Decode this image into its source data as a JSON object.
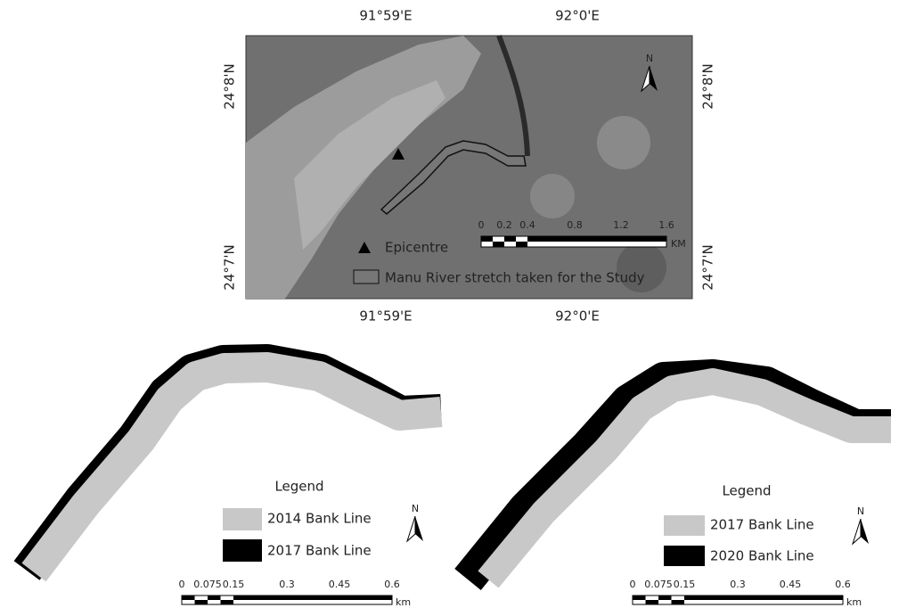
{
  "top_map": {
    "lon_labels_top": [
      "91°59'E",
      "92°0'E"
    ],
    "lon_labels_bottom": [
      "91°59'E",
      "92°0'E"
    ],
    "lat_labels_left": [
      "24°8'N",
      "24°7'N"
    ],
    "lat_labels_right": [
      "24°8'N",
      "24°7'N"
    ],
    "north": "N",
    "scale": {
      "labels": [
        "0",
        "0.2",
        "0.4",
        "0.8",
        "1.2",
        "1.6"
      ],
      "unit": "KM"
    },
    "legend": [
      "Epicentre",
      "Manu River stretch taken for the Study"
    ]
  },
  "panels": [
    {
      "legend_title": "Legend",
      "legend": [
        "2014 Bank Line",
        "2017 Bank Line"
      ],
      "north": "N",
      "scale": {
        "labels": [
          "0",
          "0.075",
          "0.15",
          "0.3",
          "0.45",
          "0.6"
        ],
        "unit": "km"
      }
    },
    {
      "legend_title": "Legend",
      "legend": [
        "2017 Bank Line",
        "2020 Bank Line"
      ],
      "north": "N",
      "scale": {
        "labels": [
          "0",
          "0.075",
          "0.15",
          "0.3",
          "0.45",
          "0.6"
        ],
        "unit": "km"
      }
    }
  ]
}
